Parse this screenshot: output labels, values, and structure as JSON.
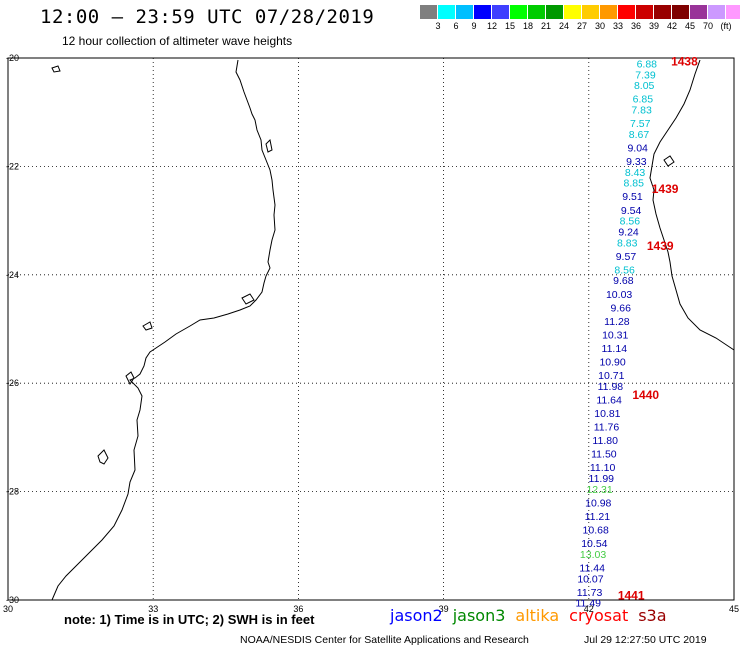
{
  "header": {
    "title": "12:00 – 23:59 UTC 07/28/2019",
    "subtitle": "12 hour collection of altimeter wave heights"
  },
  "legend": {
    "unit": "(ft)",
    "colors": [
      "#7f7f7f",
      "#00ffff",
      "#00bfff",
      "#0000ff",
      "#3f3fff",
      "#00ff00",
      "#00cc00",
      "#009900",
      "#ffff00",
      "#ffcc00",
      "#ff9900",
      "#ff0000",
      "#cc0000",
      "#990000",
      "#7f0000",
      "#993399",
      "#cc99ff",
      "#ff99ff",
      "#000000"
    ],
    "labels": [
      "3",
      "6",
      "9",
      "12",
      "15",
      "18",
      "21",
      "24",
      "27",
      "30",
      "33",
      "36",
      "39",
      "42",
      "45",
      "70"
    ]
  },
  "map": {
    "lon_range": [
      30,
      45
    ],
    "lat_range": [
      -30,
      -20
    ],
    "lon_ticks": [
      "30",
      "33",
      "36",
      "39",
      "42",
      "45"
    ],
    "lat_ticks": [
      "-20",
      "-22",
      "-24",
      "-26",
      "-28",
      "-30"
    ]
  },
  "observations": [
    {
      "lat": -20.1,
      "value": "6.88",
      "sat": "cyan"
    },
    {
      "lat": -20.3,
      "value": "7.39",
      "sat": "cyan"
    },
    {
      "lat": -20.5,
      "value": "8.05",
      "sat": "cyan"
    },
    {
      "lat": -20.75,
      "value": "6.85",
      "sat": "cyan"
    },
    {
      "lat": -20.95,
      "value": "7.83",
      "sat": "cyan"
    },
    {
      "lat": -21.2,
      "value": "7.57",
      "sat": "cyan"
    },
    {
      "lat": -21.4,
      "value": "8.67",
      "sat": "cyan"
    },
    {
      "lat": -21.65,
      "value": "9.04",
      "sat": "blue"
    },
    {
      "lat": -21.9,
      "value": "9.33",
      "sat": "blue"
    },
    {
      "lat": -22.1,
      "value": "8.43",
      "sat": "cyan"
    },
    {
      "lat": -22.3,
      "value": "8.85",
      "sat": "cyan"
    },
    {
      "lat": -22.55,
      "value": "9.51",
      "sat": "blue"
    },
    {
      "lat": -22.8,
      "value": "9.54",
      "sat": "blue"
    },
    {
      "lat": -23.0,
      "value": "8.56",
      "sat": "cyan"
    },
    {
      "lat": -23.2,
      "value": "9.24",
      "sat": "blue"
    },
    {
      "lat": -23.4,
      "value": "8.83",
      "sat": "cyan"
    },
    {
      "lat": -23.65,
      "value": "9.57",
      "sat": "blue"
    },
    {
      "lat": -23.9,
      "value": "8.56",
      "sat": "cyan"
    },
    {
      "lat": -24.1,
      "value": "9.68",
      "sat": "blue"
    },
    {
      "lat": -24.35,
      "value": "10.03",
      "sat": "blue"
    },
    {
      "lat": -24.6,
      "value": "9.66",
      "sat": "blue"
    },
    {
      "lat": -24.85,
      "value": "11.28",
      "sat": "blue"
    },
    {
      "lat": -25.1,
      "value": "10.31",
      "sat": "blue"
    },
    {
      "lat": -25.35,
      "value": "11.14",
      "sat": "blue"
    },
    {
      "lat": -25.6,
      "value": "10.90",
      "sat": "blue"
    },
    {
      "lat": -25.85,
      "value": "10.71",
      "sat": "blue"
    },
    {
      "lat": -26.05,
      "value": "11.98",
      "sat": "blue"
    },
    {
      "lat": -26.3,
      "value": "11.64",
      "sat": "blue"
    },
    {
      "lat": -26.55,
      "value": "10.81",
      "sat": "blue"
    },
    {
      "lat": -26.8,
      "value": "11.76",
      "sat": "blue"
    },
    {
      "lat": -27.05,
      "value": "11.80",
      "sat": "blue"
    },
    {
      "lat": -27.3,
      "value": "11.50",
      "sat": "blue"
    },
    {
      "lat": -27.55,
      "value": "11.10",
      "sat": "blue"
    },
    {
      "lat": -27.75,
      "value": "11.99",
      "sat": "blue"
    },
    {
      "lat": -27.95,
      "value": "12.31",
      "sat": "green"
    },
    {
      "lat": -28.2,
      "value": "10.98",
      "sat": "blue"
    },
    {
      "lat": -28.45,
      "value": "11.21",
      "sat": "blue"
    },
    {
      "lat": -28.7,
      "value": "10.68",
      "sat": "blue"
    },
    {
      "lat": -28.95,
      "value": "10.54",
      "sat": "blue"
    },
    {
      "lat": -29.15,
      "value": "13.03",
      "sat": "green"
    },
    {
      "lat": -29.4,
      "value": "11.44",
      "sat": "blue"
    },
    {
      "lat": -29.6,
      "value": "10.07",
      "sat": "blue"
    },
    {
      "lat": -29.85,
      "value": "11.73",
      "sat": "blue"
    },
    {
      "lat": -30.05,
      "value": "11.49",
      "sat": "blue"
    }
  ],
  "time_labels": [
    {
      "lat": -20.05,
      "lon": 43.7,
      "value": "1438"
    },
    {
      "lat": -22.4,
      "lon": 43.3,
      "value": "1439"
    },
    {
      "lat": -23.45,
      "lon": 43.2,
      "value": "1439"
    },
    {
      "lat": -26.2,
      "lon": 42.9,
      "value": "1440"
    },
    {
      "lat": -29.9,
      "lon": 42.6,
      "value": "1441"
    }
  ],
  "footer": {
    "note": "note:  1) Time is in UTC;  2) SWH is in feet",
    "satellites": [
      {
        "name": "jason2",
        "color": "#0000ff"
      },
      {
        "name": "jason3",
        "color": "#008800"
      },
      {
        "name": "altika",
        "color": "#ff9900"
      },
      {
        "name": "cryosat",
        "color": "#ff0000"
      },
      {
        "name": "s3a",
        "color": "#990000"
      }
    ],
    "credit": "NOAA/NESDIS Center for Satellite Applications and Research",
    "timestamp": "Jul 29 12:27:50 UTC 2019"
  },
  "colors": {
    "cyan": "#00c0d0",
    "blue": "#0000aa",
    "green": "#44cc44",
    "time": "#dd0000"
  }
}
